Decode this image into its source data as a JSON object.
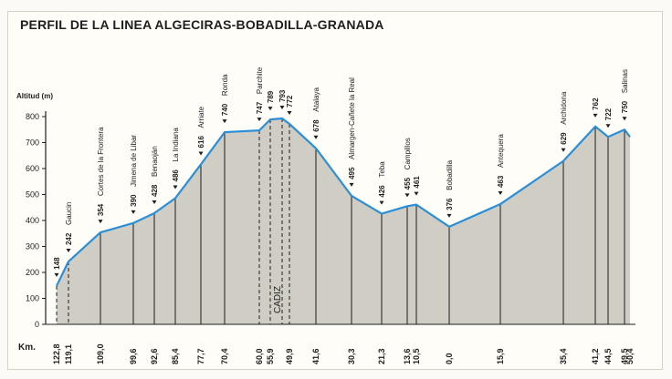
{
  "chart_data": {
    "type": "area",
    "title": "PERFIL DE LA LINEA ALGECIRAS-BOBADILLA-GRANADA",
    "ylabel": "Altitud (m)",
    "xlabel": "Km.",
    "ylim": [
      0,
      800
    ],
    "yticks": [
      0,
      100,
      200,
      300,
      400,
      500,
      600,
      700,
      800
    ],
    "grid": false,
    "fill_color": "#cfcdc4",
    "line_color": "#2a8fd6",
    "points": [
      {
        "km": "122,8",
        "alt": 148,
        "name": ""
      },
      {
        "km": "119,1",
        "alt": 242,
        "name": "Gaucin"
      },
      {
        "km": "109,0",
        "alt": 354,
        "name": "Cortes de la Frontera"
      },
      {
        "km": "99,6",
        "alt": 390,
        "name": "Jimena de Libar"
      },
      {
        "km": "92,6",
        "alt": 428,
        "name": "Benaoján"
      },
      {
        "km": "85,4",
        "alt": 486,
        "name": "La Indiana"
      },
      {
        "km": "77,7",
        "alt": 616,
        "name": "Arriate"
      },
      {
        "km": "70,4",
        "alt": 740,
        "name": "Ronda"
      },
      {
        "km": "60,0",
        "alt": 747,
        "name": "Parchite"
      },
      {
        "km": "55,9",
        "alt": 789,
        "name": ""
      },
      {
        "km": "",
        "alt": 793,
        "name": ""
      },
      {
        "km": "49,9",
        "alt": 772,
        "name": ""
      },
      {
        "km": "41,6",
        "alt": 678,
        "name": "Atalaya"
      },
      {
        "km": "30,3",
        "alt": 495,
        "name": "Almargen-Cañete la Real"
      },
      {
        "km": "21,3",
        "alt": 426,
        "name": "Teba"
      },
      {
        "km": "13,6",
        "alt": 455,
        "name": "Campillos"
      },
      {
        "km": "10,5",
        "alt": 461,
        "name": ""
      },
      {
        "km": "0,0",
        "alt": 376,
        "name": "Bobadilla"
      },
      {
        "km": "15,9",
        "alt": 463,
        "name": "Antequera"
      },
      {
        "km": "35,4",
        "alt": 629,
        "name": "Archidona"
      },
      {
        "km": "41,2",
        "alt": 762,
        "name": ""
      },
      {
        "km": "44,5",
        "alt": 722,
        "name": ""
      },
      {
        "km": "49,5",
        "alt": 750,
        "name": "Salinas"
      },
      {
        "km": "50,4",
        "alt": 0,
        "name": ""
      }
    ],
    "annotation": "CADIZ"
  }
}
